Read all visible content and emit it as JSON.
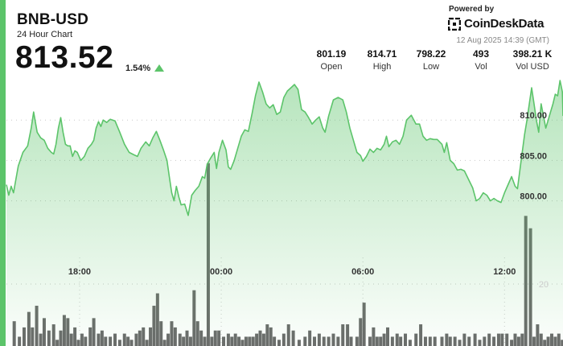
{
  "header": {
    "symbol": "BNB-USD",
    "subtitle": "24 Hour Chart",
    "price": "813.52",
    "change": "1.54%",
    "powered_by": "Powered by",
    "brand": "CoinDeskData",
    "timestamp": "12 Aug 2025 14:39 (GMT)"
  },
  "stats": [
    {
      "value": "801.19",
      "label": "Open"
    },
    {
      "value": "814.71",
      "label": "High"
    },
    {
      "value": "798.22",
      "label": "Low"
    },
    {
      "value": "493",
      "label": "Vol"
    },
    {
      "value": "398.21 K",
      "label": "Vol USD"
    }
  ],
  "colors": {
    "accent": "#5cc46a",
    "line": "#5cc46a",
    "volume_bar": "#6b6b6b",
    "up": "#5cc46a"
  },
  "icons": {
    "change_indicator": "triangle-up-icon",
    "brand_logo": "coindesk-logo-icon"
  },
  "chart_data": {
    "type": "area",
    "x_tick_labels": [
      "18:00",
      "00:00",
      "06:00",
      "12:00"
    ],
    "x_tick_hours": [
      3.1,
      9.1,
      15.1,
      21.1
    ],
    "y_tick_labels": [
      "800.00",
      "805.00",
      "810.00"
    ],
    "y_ticks": [
      800,
      805,
      810
    ],
    "volume_axis_tick": "20",
    "volume_axis_value": 20,
    "ylim": [
      789.5,
      815.3
    ],
    "price_series": [
      [
        0.0,
        802.0
      ],
      [
        0.1,
        800.7
      ],
      [
        0.2,
        801.8
      ],
      [
        0.3,
        801.0
      ],
      [
        0.5,
        804.3
      ],
      [
        0.7,
        806.0
      ],
      [
        0.9,
        806.8
      ],
      [
        1.05,
        809.0
      ],
      [
        1.15,
        811.0
      ],
      [
        1.3,
        808.5
      ],
      [
        1.45,
        807.8
      ],
      [
        1.6,
        807.5
      ],
      [
        1.75,
        806.5
      ],
      [
        1.9,
        806.0
      ],
      [
        2.0,
        805.8
      ],
      [
        2.1,
        807.0
      ],
      [
        2.2,
        809.0
      ],
      [
        2.3,
        810.3
      ],
      [
        2.4,
        808.5
      ],
      [
        2.5,
        807.0
      ],
      [
        2.6,
        806.8
      ],
      [
        2.7,
        806.8
      ],
      [
        2.8,
        805.5
      ],
      [
        2.9,
        806.2
      ],
      [
        3.0,
        806.0
      ],
      [
        3.15,
        805.0
      ],
      [
        3.3,
        805.5
      ],
      [
        3.45,
        806.5
      ],
      [
        3.6,
        807.0
      ],
      [
        3.7,
        807.5
      ],
      [
        3.8,
        809.0
      ],
      [
        3.9,
        809.8
      ],
      [
        4.0,
        809.2
      ],
      [
        4.1,
        810.0
      ],
      [
        4.25,
        809.7
      ],
      [
        4.4,
        810.1
      ],
      [
        4.6,
        809.9
      ],
      [
        4.8,
        808.5
      ],
      [
        5.0,
        807.0
      ],
      [
        5.2,
        806.0
      ],
      [
        5.4,
        805.7
      ],
      [
        5.55,
        805.5
      ],
      [
        5.7,
        806.5
      ],
      [
        5.9,
        807.3
      ],
      [
        6.05,
        806.8
      ],
      [
        6.2,
        807.8
      ],
      [
        6.35,
        808.6
      ],
      [
        6.5,
        807.5
      ],
      [
        6.65,
        806.3
      ],
      [
        6.8,
        805.0
      ],
      [
        6.9,
        803.0
      ],
      [
        7.0,
        801.0
      ],
      [
        7.1,
        800.0
      ],
      [
        7.2,
        801.8
      ],
      [
        7.3,
        800.5
      ],
      [
        7.4,
        799.5
      ],
      [
        7.55,
        799.6
      ],
      [
        7.7,
        798.2
      ],
      [
        7.85,
        800.7
      ],
      [
        8.0,
        801.3
      ],
      [
        8.15,
        801.8
      ],
      [
        8.3,
        803.0
      ],
      [
        8.4,
        802.8
      ],
      [
        8.5,
        804.5
      ],
      [
        8.65,
        805.3
      ],
      [
        8.8,
        806.0
      ],
      [
        8.9,
        804.0
      ],
      [
        9.0,
        806.0
      ],
      [
        9.15,
        807.5
      ],
      [
        9.3,
        806.3
      ],
      [
        9.4,
        804.2
      ],
      [
        9.5,
        803.9
      ],
      [
        9.65,
        805.0
      ],
      [
        9.8,
        806.5
      ],
      [
        9.95,
        808.0
      ],
      [
        10.1,
        808.8
      ],
      [
        10.25,
        808.6
      ],
      [
        10.4,
        810.7
      ],
      [
        10.55,
        813.0
      ],
      [
        10.7,
        814.7
      ],
      [
        10.85,
        813.5
      ],
      [
        11.0,
        812.0
      ],
      [
        11.15,
        811.5
      ],
      [
        11.3,
        811.9
      ],
      [
        11.45,
        810.7
      ],
      [
        11.6,
        811.0
      ],
      [
        11.75,
        812.8
      ],
      [
        11.9,
        813.6
      ],
      [
        12.05,
        814.0
      ],
      [
        12.2,
        814.4
      ],
      [
        12.35,
        813.8
      ],
      [
        12.5,
        811.3
      ],
      [
        12.65,
        811.0
      ],
      [
        12.8,
        810.3
      ],
      [
        12.95,
        809.5
      ],
      [
        13.1,
        810.0
      ],
      [
        13.25,
        810.4
      ],
      [
        13.4,
        809.0
      ],
      [
        13.5,
        808.5
      ],
      [
        13.65,
        810.5
      ],
      [
        13.85,
        812.5
      ],
      [
        14.05,
        812.8
      ],
      [
        14.25,
        812.5
      ],
      [
        14.4,
        811.0
      ],
      [
        14.55,
        809.0
      ],
      [
        14.7,
        807.5
      ],
      [
        14.85,
        806.0
      ],
      [
        15.0,
        805.6
      ],
      [
        15.1,
        804.9
      ],
      [
        15.25,
        805.5
      ],
      [
        15.4,
        806.4
      ],
      [
        15.55,
        806.0
      ],
      [
        15.7,
        806.5
      ],
      [
        15.85,
        806.3
      ],
      [
        16.0,
        807.0
      ],
      [
        16.1,
        808.0
      ],
      [
        16.2,
        806.7
      ],
      [
        16.35,
        807.3
      ],
      [
        16.5,
        807.5
      ],
      [
        16.65,
        807.0
      ],
      [
        16.8,
        808.0
      ],
      [
        16.95,
        810.0
      ],
      [
        17.15,
        810.6
      ],
      [
        17.35,
        809.5
      ],
      [
        17.5,
        809.5
      ],
      [
        17.65,
        808.0
      ],
      [
        17.8,
        807.5
      ],
      [
        17.95,
        807.7
      ],
      [
        18.1,
        807.6
      ],
      [
        18.25,
        807.6
      ],
      [
        18.45,
        807.0
      ],
      [
        18.55,
        806.0
      ],
      [
        18.65,
        807.2
      ],
      [
        18.8,
        805.0
      ],
      [
        18.95,
        804.6
      ],
      [
        19.1,
        803.8
      ],
      [
        19.25,
        803.9
      ],
      [
        19.4,
        803.7
      ],
      [
        19.6,
        802.5
      ],
      [
        19.75,
        801.6
      ],
      [
        19.9,
        800.0
      ],
      [
        20.05,
        800.3
      ],
      [
        20.2,
        801.0
      ],
      [
        20.35,
        800.7
      ],
      [
        20.5,
        800.0
      ],
      [
        20.65,
        800.3
      ],
      [
        20.8,
        800.0
      ],
      [
        20.95,
        799.8
      ],
      [
        21.1,
        801.0
      ],
      [
        21.25,
        802.0
      ],
      [
        21.4,
        803.0
      ],
      [
        21.55,
        801.8
      ],
      [
        21.65,
        801.5
      ],
      [
        21.75,
        803.8
      ],
      [
        21.85,
        806.0
      ],
      [
        21.95,
        808.2
      ],
      [
        22.05,
        810.0
      ],
      [
        22.15,
        812.0
      ],
      [
        22.25,
        814.0
      ],
      [
        22.35,
        812.0
      ],
      [
        22.45,
        810.0
      ],
      [
        22.55,
        808.5
      ],
      [
        22.65,
        812.0
      ],
      [
        22.75,
        810.5
      ],
      [
        22.85,
        809.0
      ],
      [
        22.95,
        810.0
      ],
      [
        23.05,
        811.0
      ],
      [
        23.15,
        812.0
      ],
      [
        23.25,
        813.2
      ],
      [
        23.35,
        813.0
      ],
      [
        23.45,
        814.9
      ],
      [
        23.55,
        813.5
      ]
    ],
    "volume_series": [
      [
        0.33,
        8
      ],
      [
        0.55,
        3
      ],
      [
        0.75,
        6
      ],
      [
        0.95,
        11
      ],
      [
        1.1,
        6
      ],
      [
        1.28,
        13
      ],
      [
        1.45,
        4
      ],
      [
        1.6,
        9
      ],
      [
        1.8,
        5
      ],
      [
        2.0,
        7
      ],
      [
        2.15,
        2
      ],
      [
        2.3,
        5
      ],
      [
        2.45,
        10
      ],
      [
        2.6,
        9
      ],
      [
        2.75,
        4
      ],
      [
        2.9,
        6
      ],
      [
        3.05,
        2
      ],
      [
        3.2,
        4
      ],
      [
        3.35,
        3
      ],
      [
        3.55,
        6
      ],
      [
        3.7,
        9
      ],
      [
        3.9,
        4
      ],
      [
        4.05,
        5
      ],
      [
        4.2,
        3
      ],
      [
        4.4,
        3
      ],
      [
        4.6,
        4
      ],
      [
        4.8,
        2
      ],
      [
        5.0,
        4
      ],
      [
        5.15,
        3
      ],
      [
        5.3,
        2
      ],
      [
        5.5,
        4
      ],
      [
        5.65,
        5
      ],
      [
        5.8,
        6
      ],
      [
        5.95,
        2
      ],
      [
        6.1,
        6
      ],
      [
        6.25,
        13
      ],
      [
        6.4,
        17
      ],
      [
        6.55,
        8
      ],
      [
        6.7,
        2
      ],
      [
        6.85,
        4
      ],
      [
        7.0,
        8
      ],
      [
        7.15,
        6
      ],
      [
        7.35,
        4
      ],
      [
        7.5,
        3
      ],
      [
        7.65,
        5
      ],
      [
        7.8,
        3
      ],
      [
        7.95,
        18
      ],
      [
        8.1,
        8
      ],
      [
        8.25,
        5
      ],
      [
        8.4,
        3
      ],
      [
        8.55,
        59
      ],
      [
        8.7,
        3
      ],
      [
        8.85,
        5
      ],
      [
        9.0,
        5
      ],
      [
        9.2,
        3
      ],
      [
        9.4,
        4
      ],
      [
        9.55,
        3
      ],
      [
        9.7,
        4
      ],
      [
        9.85,
        3
      ],
      [
        10.0,
        2
      ],
      [
        10.15,
        3
      ],
      [
        10.3,
        3
      ],
      [
        10.45,
        3
      ],
      [
        10.6,
        4
      ],
      [
        10.75,
        5
      ],
      [
        10.9,
        4
      ],
      [
        11.05,
        7
      ],
      [
        11.2,
        6
      ],
      [
        11.35,
        3
      ],
      [
        11.55,
        2
      ],
      [
        11.75,
        4
      ],
      [
        11.95,
        7
      ],
      [
        12.15,
        5
      ],
      [
        12.4,
        2
      ],
      [
        12.65,
        3
      ],
      [
        12.85,
        5
      ],
      [
        13.05,
        3
      ],
      [
        13.25,
        4
      ],
      [
        13.45,
        3
      ],
      [
        13.65,
        3
      ],
      [
        13.85,
        4
      ],
      [
        14.05,
        3
      ],
      [
        14.25,
        7
      ],
      [
        14.45,
        7
      ],
      [
        14.6,
        3
      ],
      [
        14.85,
        3
      ],
      [
        15.0,
        9
      ],
      [
        15.15,
        14
      ],
      [
        15.4,
        3
      ],
      [
        15.55,
        6
      ],
      [
        15.7,
        3
      ],
      [
        15.85,
        3
      ],
      [
        16.0,
        4
      ],
      [
        16.15,
        6
      ],
      [
        16.35,
        3
      ],
      [
        16.55,
        4
      ],
      [
        16.7,
        3
      ],
      [
        16.9,
        4
      ],
      [
        17.1,
        2
      ],
      [
        17.35,
        4
      ],
      [
        17.55,
        7
      ],
      [
        17.75,
        3
      ],
      [
        17.95,
        3
      ],
      [
        18.15,
        3
      ],
      [
        18.45,
        3
      ],
      [
        18.65,
        4
      ],
      [
        18.8,
        3
      ],
      [
        19.0,
        3
      ],
      [
        19.2,
        2
      ],
      [
        19.4,
        4
      ],
      [
        19.6,
        3
      ],
      [
        19.85,
        4
      ],
      [
        20.05,
        2
      ],
      [
        20.25,
        3
      ],
      [
        20.45,
        4
      ],
      [
        20.65,
        3
      ],
      [
        20.85,
        4
      ],
      [
        21.0,
        4
      ],
      [
        21.2,
        4
      ],
      [
        21.4,
        2
      ],
      [
        21.55,
        4
      ],
      [
        21.7,
        3
      ],
      [
        21.85,
        4
      ],
      [
        22.0,
        42
      ],
      [
        22.2,
        38
      ],
      [
        22.35,
        3
      ],
      [
        22.5,
        7
      ],
      [
        22.65,
        4
      ],
      [
        22.8,
        2
      ],
      [
        22.95,
        3
      ],
      [
        23.1,
        4
      ],
      [
        23.25,
        3
      ],
      [
        23.4,
        4
      ],
      [
        23.55,
        2
      ]
    ]
  }
}
